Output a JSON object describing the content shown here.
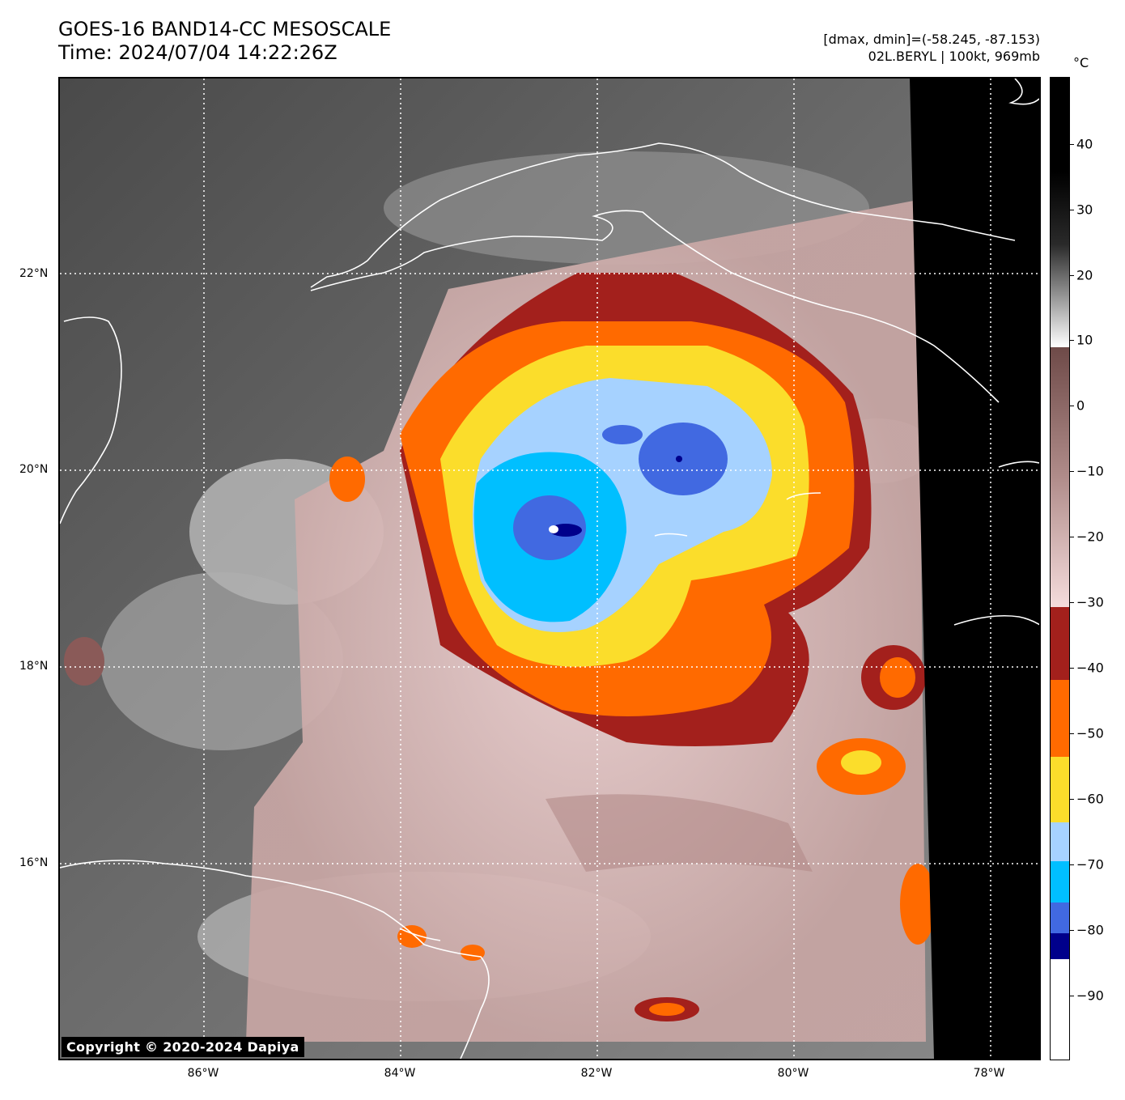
{
  "header": {
    "title_line1": "GOES-16 BAND14-CC MESOSCALE",
    "title_line2": "Time: 2024/07/04 14:22:26Z",
    "range_text": "[dmax, dmin]=(-58.245, -87.153)",
    "storm_text": "02L.BERYL | 100kt, 969mb"
  },
  "map": {
    "copyright": "Copyright © 2020-2024 Dapiya",
    "lat_labels": [
      "22°N",
      "20°N",
      "18°N",
      "16°N"
    ],
    "lon_labels": [
      "86°W",
      "84°W",
      "82°W",
      "80°W",
      "78°W"
    ]
  },
  "colorbar": {
    "unit": "°C",
    "ticks": [
      "40",
      "30",
      "20",
      "10",
      "0",
      "−10",
      "−20",
      "−30",
      "−40",
      "−50",
      "−60",
      "−70",
      "−80",
      "−90"
    ],
    "colors": {
      "black": "#000000",
      "white": "#ffffff",
      "brown": "#6e4a48",
      "pink": "#f5dcdc",
      "darkred": "#a3201c",
      "orange": "#ff6a00",
      "yellow": "#fbdd2b",
      "lightblue": "#a6d2ff",
      "cyan": "#00bfff",
      "royalblue": "#4169e1",
      "navy": "#00008b"
    }
  }
}
